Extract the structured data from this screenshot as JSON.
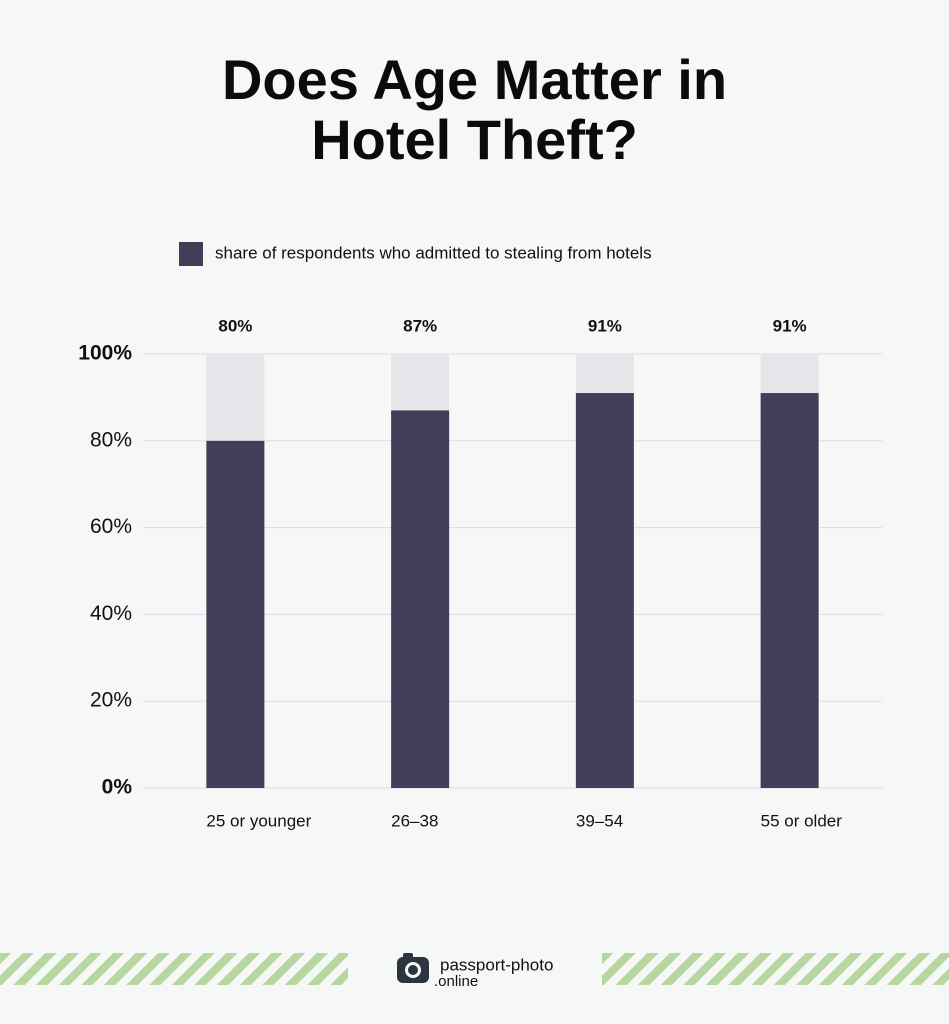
{
  "chart_data": {
    "type": "bar",
    "title": "Does Age Matter in Hotel Theft?",
    "categories": [
      "25 or younger",
      "26–38",
      "39–54",
      "55 or older"
    ],
    "series": [
      {
        "name": "share of respondents who admitted to stealing from hotels",
        "color": "#423d58",
        "values": [
          80,
          87,
          91,
          91
        ],
        "value_labels": [
          "80%",
          "87%",
          "91%",
          "91%"
        ]
      }
    ],
    "ylim": [
      0,
      100
    ],
    "yticks": [
      {
        "value": 0,
        "label": "0%"
      },
      {
        "value": 20,
        "label": "20%"
      },
      {
        "value": 40,
        "label": "40%"
      },
      {
        "value": 60,
        "label": "60%"
      },
      {
        "value": 80,
        "label": "80%"
      },
      {
        "value": 100,
        "label": "100%"
      }
    ],
    "grid": true
  },
  "footer": {
    "brand_top": "passport-photo",
    "brand_bottom": ".online"
  }
}
